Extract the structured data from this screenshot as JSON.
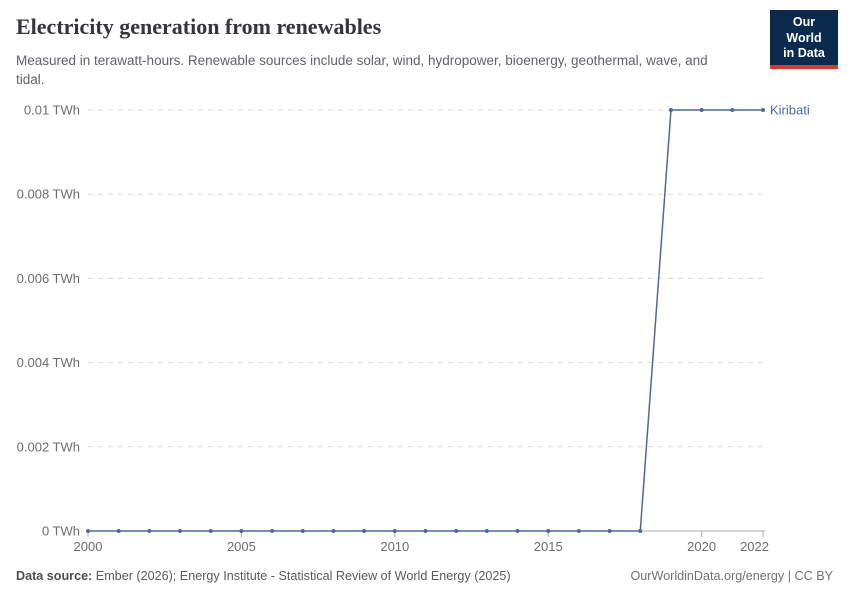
{
  "header": {
    "title": "Electricity generation from renewables",
    "subtitle": "Measured in terawatt-hours. Renewable sources include solar, wind, hydropower, bioenergy, geothermal, wave, and tidal.",
    "logo": {
      "line1": "Our World",
      "line2": "in Data"
    }
  },
  "chart_data": {
    "type": "line",
    "title": "Electricity generation from renewables",
    "xlabel": "",
    "ylabel": "TWh",
    "xlim": [
      2000,
      2022
    ],
    "ylim": [
      0,
      0.01
    ],
    "grid": "dashed-horizontal",
    "legend_position": "end-of-line-label",
    "x_ticks": [
      {
        "value": 2000,
        "label": "2000"
      },
      {
        "value": 2005,
        "label": "2005"
      },
      {
        "value": 2010,
        "label": "2010"
      },
      {
        "value": 2015,
        "label": "2015"
      },
      {
        "value": 2020,
        "label": "2020"
      },
      {
        "value": 2022,
        "label": "2022",
        "align": "end"
      }
    ],
    "y_ticks": [
      {
        "value": 0,
        "label": "0 TWh"
      },
      {
        "value": 0.002,
        "label": "0.002 TWh"
      },
      {
        "value": 0.004,
        "label": "0.004 TWh"
      },
      {
        "value": 0.006,
        "label": "0.006 TWh"
      },
      {
        "value": 0.008,
        "label": "0.008 TWh"
      },
      {
        "value": 0.01,
        "label": "0.01 TWh"
      }
    ],
    "series": [
      {
        "name": "Kiribati",
        "color": "#4C6A9C",
        "x": [
          2000,
          2001,
          2002,
          2003,
          2004,
          2005,
          2006,
          2007,
          2008,
          2009,
          2010,
          2011,
          2012,
          2013,
          2014,
          2015,
          2016,
          2017,
          2018,
          2019,
          2020,
          2021,
          2022
        ],
        "values": [
          0,
          0,
          0,
          0,
          0,
          0,
          0,
          0,
          0,
          0,
          0,
          0,
          0,
          0,
          0,
          0,
          0,
          0,
          0,
          0.01,
          0.01,
          0.01,
          0.01
        ]
      }
    ]
  },
  "footer": {
    "source_label": "Data source:",
    "source_text": " Ember (2026); Energy Institute - Statistical Review of World Energy (2025)",
    "right_text": "OurWorldinData.org/energy | CC BY"
  },
  "colors": {
    "line": "#4C6A9C",
    "logo_bg": "#0C2A4E",
    "logo_red": "#E0362C",
    "grid": "#DCDCDC",
    "axis": "#ADADAD",
    "tick_text": "#6E6E6E"
  }
}
